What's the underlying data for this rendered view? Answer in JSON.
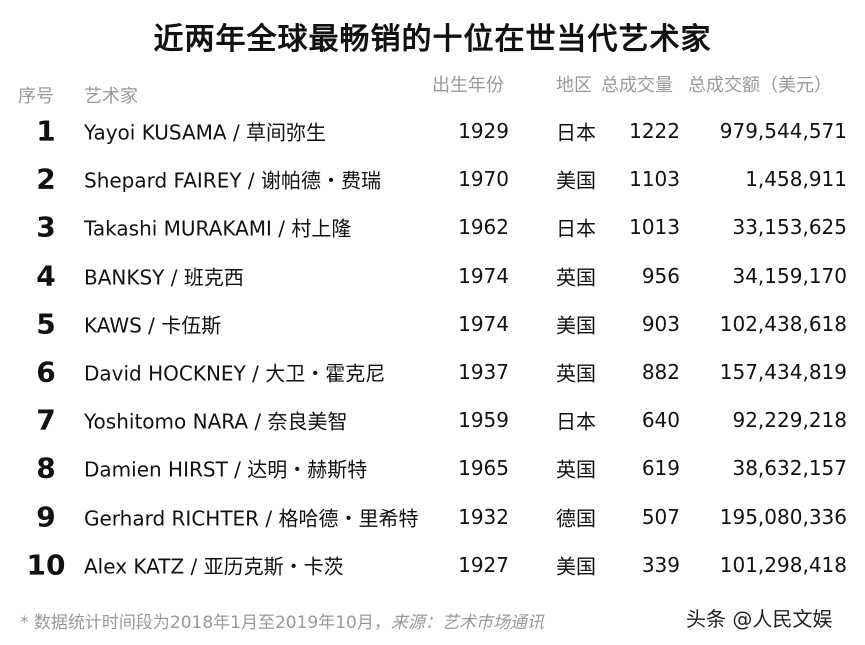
{
  "title": "近两年全球最畅销的十位在世当代艺术家",
  "headers": {
    "rank": "序号",
    "artist": "艺术家",
    "birth_year": "出生年份",
    "region": "地区",
    "volume": "总成交量",
    "amount": "总成交额（美元）"
  },
  "rows": [
    {
      "rank": "1",
      "artist": "Yayoi KUSAMA / 草间弥生",
      "birth_year": "1929",
      "region": "日本",
      "volume": "1222",
      "amount": "979,544,571"
    },
    {
      "rank": "2",
      "artist": "Shepard FAIREY / 谢帕德・费瑞",
      "birth_year": "1970",
      "region": "美国",
      "volume": "1103",
      "amount": "1,458,911"
    },
    {
      "rank": "3",
      "artist": "Takashi MURAKAMI / 村上隆",
      "birth_year": "1962",
      "region": "日本",
      "volume": "1013",
      "amount": "33,153,625"
    },
    {
      "rank": "4",
      "artist": "BANKSY / 班克西",
      "birth_year": "1974",
      "region": "英国",
      "volume": "956",
      "amount": "34,159,170"
    },
    {
      "rank": "5",
      "artist": "KAWS / 卡伍斯",
      "birth_year": "1974",
      "region": "美国",
      "volume": "903",
      "amount": "102,438,618"
    },
    {
      "rank": "6",
      "artist": "David HOCKNEY / 大卫・霍克尼",
      "birth_year": "1937",
      "region": "英国",
      "volume": "882",
      "amount": "157,434,819"
    },
    {
      "rank": "7",
      "artist": "Yoshitomo NARA / 奈良美智",
      "birth_year": "1959",
      "region": "日本",
      "volume": "640",
      "amount": "92,229,218"
    },
    {
      "rank": "8",
      "artist": "Damien HIRST / 达明・赫斯特",
      "birth_year": "1965",
      "region": "英国",
      "volume": "619",
      "amount": "38,632,157"
    },
    {
      "rank": "9",
      "artist": "Gerhard RICHTER / 格哈德・里希特",
      "birth_year": "1932",
      "region": "德国",
      "volume": "507",
      "amount": "195,080,336"
    },
    {
      "rank": "10",
      "artist": "Alex KATZ / 亚历克斯・卡茨",
      "birth_year": "1927",
      "region": "美国",
      "volume": "339",
      "amount": "101,298,418"
    }
  ],
  "footnote": {
    "text": "* 数据统计时间段为2018年1月至2019年10月，",
    "source": "来源：艺术市场通讯"
  },
  "watermark": "头条 @人民文娱"
}
